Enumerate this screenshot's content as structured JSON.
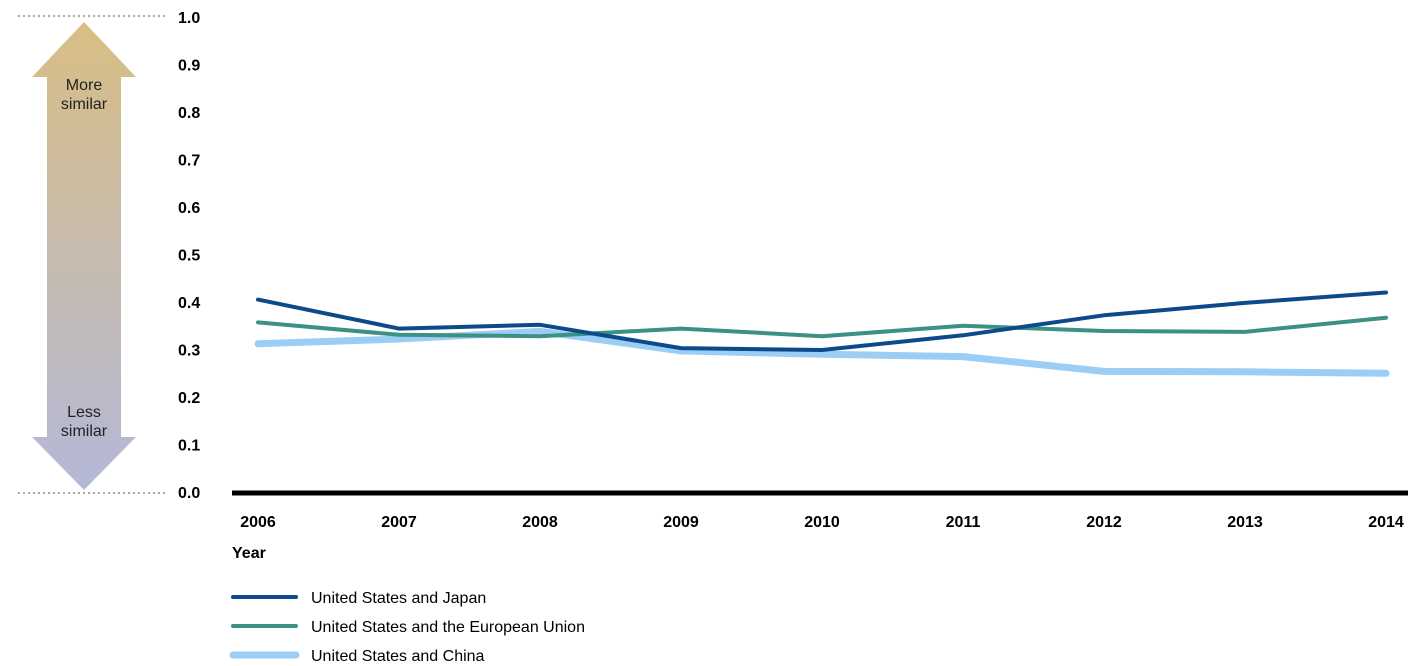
{
  "chart_data": {
    "type": "line",
    "title": "",
    "xlabel": "Year",
    "ylabel": "",
    "x": [
      "2006",
      "2007",
      "2008",
      "2009",
      "2010",
      "2011",
      "2012",
      "2013",
      "2014"
    ],
    "ylim": [
      0,
      1.0
    ],
    "yticks": [
      "0.0",
      "0.1",
      "0.2",
      "0.3",
      "0.4",
      "0.5",
      "0.6",
      "0.7",
      "0.8",
      "0.9",
      "1.0"
    ],
    "grid": false,
    "legend_position": "bottom-left",
    "series": [
      {
        "name": "United States and Japan",
        "color": "#0d4a8a",
        "values": [
          0.405,
          0.344,
          0.352,
          0.303,
          0.299,
          0.33,
          0.372,
          0.398,
          0.42
        ]
      },
      {
        "name": "United States and the European Union",
        "color": "#3c9184",
        "values": [
          0.357,
          0.331,
          0.328,
          0.344,
          0.328,
          0.35,
          0.339,
          0.337,
          0.367
        ]
      },
      {
        "name": "United States and China",
        "color": "#9bcdf5",
        "values": [
          0.312,
          0.322,
          0.338,
          0.297,
          0.29,
          0.285,
          0.254,
          0.253,
          0.25
        ]
      }
    ],
    "annotations": {
      "top_label": [
        "More",
        "similar"
      ],
      "bottom_label": [
        "Less",
        "similar"
      ],
      "arrow_top_color": "#d8be84",
      "arrow_bottom_color": "#b4b8d8"
    }
  }
}
